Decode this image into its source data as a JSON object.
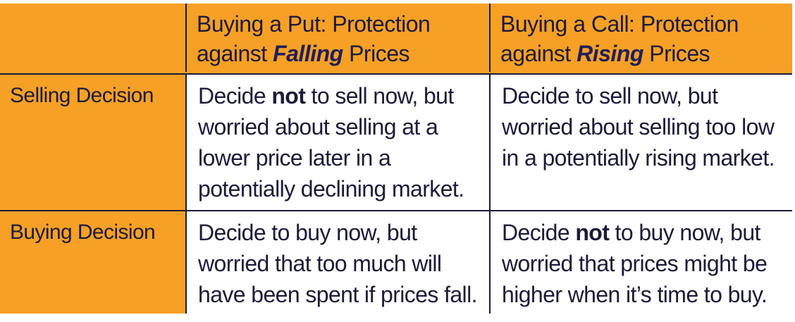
{
  "table": {
    "header": {
      "corner": "",
      "put": {
        "line1": "Buying a Put: Protection",
        "line2_prefix": "against ",
        "emphasis": "Falling",
        "line2_suffix": " Prices"
      },
      "call": {
        "line1": "Buying a Call: Protection",
        "line2_prefix": "against ",
        "emphasis": "Rising",
        "line2_suffix": " Prices"
      }
    },
    "rows": [
      {
        "label": "Selling Decision",
        "put": {
          "prefix": "Decide ",
          "bold": "not",
          "suffix": " to sell now, but worried about selling at a lower price later in a potentially declining market."
        },
        "call": {
          "prefix": "Decide to sell now, but worried about selling too low in a potentially rising market.",
          "bold": "",
          "suffix": ""
        }
      },
      {
        "label": "Buying Decision",
        "put": {
          "prefix": "Decide to buy now, but worried that too much will have been spent if prices fall.",
          "bold": "",
          "suffix": ""
        },
        "call": {
          "prefix": "Decide ",
          "bold": "not",
          "suffix": " to buy now, but worried that prices might be higher when it’s time to buy."
        }
      }
    ],
    "colors": {
      "header_bg": "#f7a026",
      "text": "#1c1a3a",
      "border": "#1c1a3a",
      "body_bg": "#ffffff"
    }
  }
}
